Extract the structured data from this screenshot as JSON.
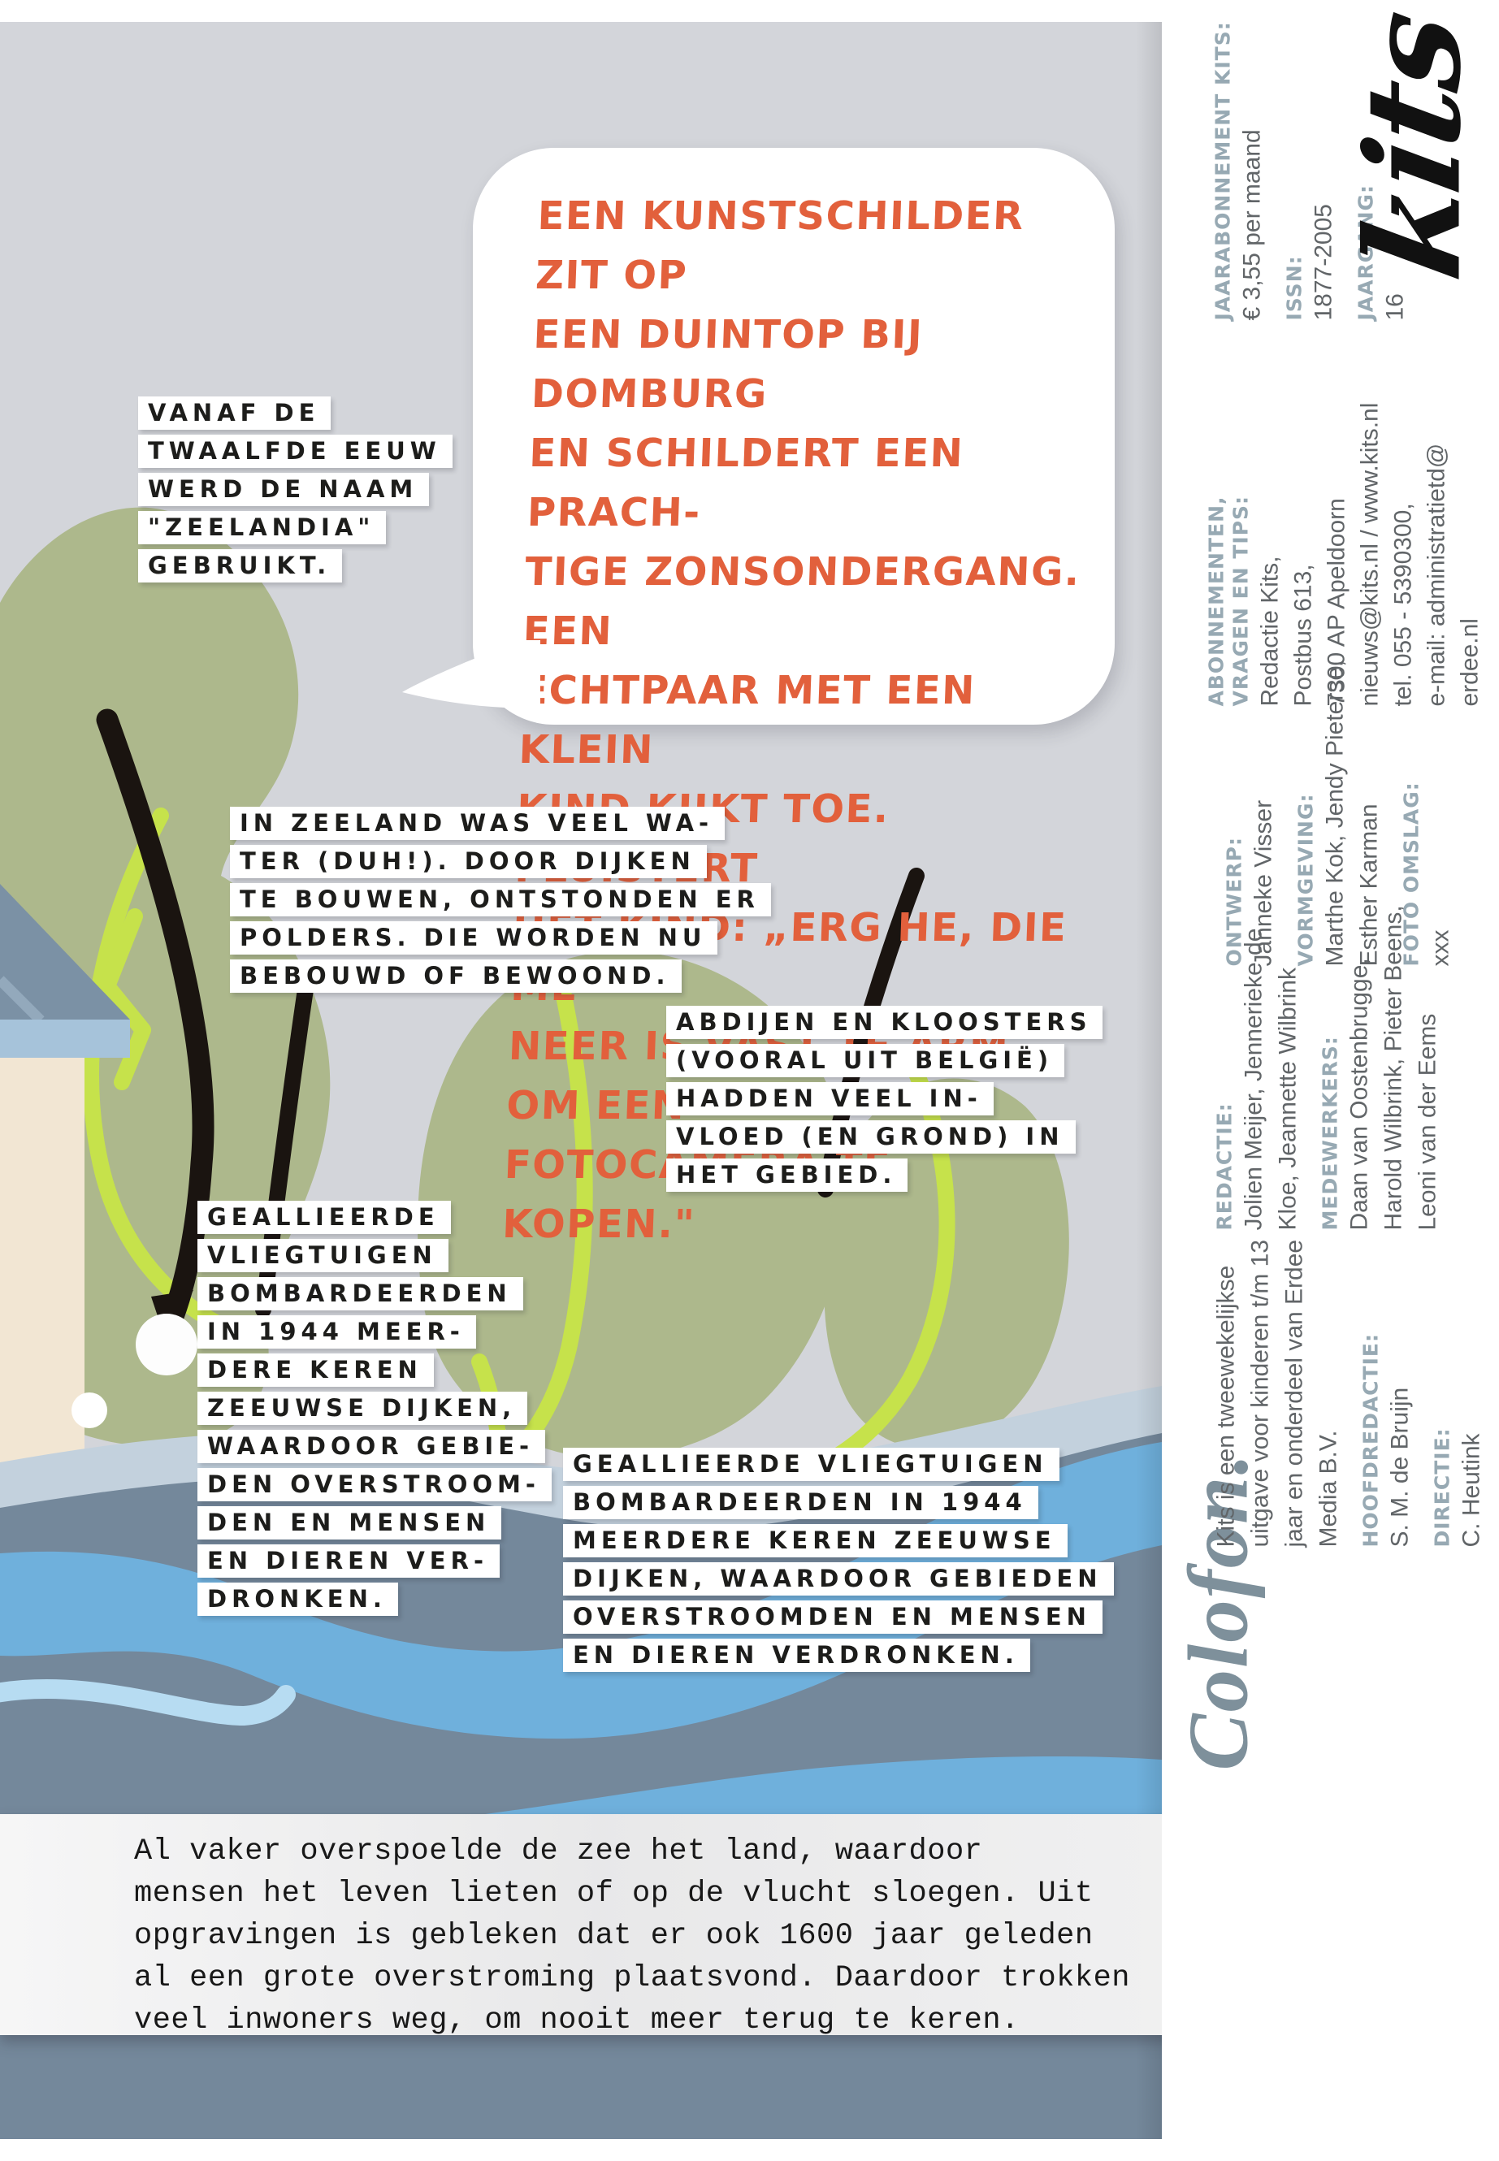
{
  "theme": {
    "panel": "#d3d5da",
    "canopy": "#adb88c",
    "lime": "#c6e24b",
    "branch": "#1a1410",
    "roof": "#7b91a5",
    "roof-line": "#93a9bc",
    "fascia": "#a6c3da",
    "wall": "#f2e6d3",
    "water-pale": "#c3d1dd",
    "water-slate": "#74889b",
    "water-blue": "#6fb0dc",
    "water-light": "#b7dcf2",
    "bubble-text": "#e2603c",
    "label-ink": "#1d1d1b",
    "paper": "#ededee",
    "colophon-heading": "#97a9b3",
    "colophon-text": "#616568",
    "colophon-title": "#7e909b",
    "logo-ink": "#111111"
  },
  "bubble": {
    "lines": [
      "EEN KUNSTSCHILDER ZIT OP",
      "EEN DUINTOP BIJ DOMBURG",
      "EN SCHILDERT EEN PRACH-",
      "TIGE ZONSONDERGANG. EEN",
      "ECHTPAAR MET EEN KLEIN",
      "KIND KIJKT TOE. FLUISTERT",
      "HET KIND: „ERG HE, DIE ME-",
      "NEER IS VAST TE ARM OM EEN",
      "FOTOCAMERA TE KOPEN.\""
    ]
  },
  "labels": {
    "zeelandia": {
      "lines": [
        "VANAF DE",
        "TWAALFDE EEUW",
        "WERD DE NAAM",
        "\"ZEELANDIA\"",
        "GEBRUIKT."
      ]
    },
    "polders": {
      "lines": [
        "IN ZEELAND WAS VEEL WA-",
        "TER (DUH!). DOOR DIJKEN",
        "TE BOUWEN, ONTSTONDEN ER",
        "POLDERS. DIE WORDEN NU",
        "BEBOUWD OF BEWOOND."
      ]
    },
    "abdijen": {
      "lines": [
        "ABDIJEN EN KLOOSTERS",
        "(VOORAL UIT BELGIË)",
        "HADDEN VEEL IN-",
        "VLOED (EN GROND) IN",
        "HET GEBIED."
      ]
    },
    "bombardementen_kolom": {
      "lines": [
        "GEALLIEERDE",
        "VLIEGTUIGEN",
        "BOMBARDEERDEN",
        "IN 1944 MEER-",
        "DERE KEREN",
        "ZEEUWSE DIJKEN,",
        "WAARDOOR GEBIE-",
        "DEN OVERSTROOM-",
        "DEN EN MENSEN",
        "EN DIEREN VER-",
        "DRONKEN."
      ]
    },
    "bombardementen_breed": {
      "lines": [
        "GEALLIEERDE VLIEGTUIGEN",
        "BOMBARDEERDEN IN 1944",
        "MEERDERE KEREN ZEEUWSE",
        "DIJKEN, WAARDOOR GEBIEDEN",
        "OVERSTROOMDEN EN MENSEN",
        "EN DIEREN VERDRONKEN."
      ]
    }
  },
  "footer_paragraph": {
    "lines": [
      "Al vaker overspoelde de zee het land, waardoor",
      "mensen het leven lieten of op de vlucht sloegen. Uit",
      "opgravingen is gebleken dat er ook 1600 jaar geleden",
      "al een grote overstroming plaatsvond. Daardoor trokken",
      "veel inwoners weg, om nooit meer terug te keren."
    ]
  },
  "colophon": {
    "title": "Colofon.",
    "logo_text": "kits",
    "about_lines": [
      "Kits is een tweewekelijkse",
      "uitgave voor kinderen t/m 13",
      "jaar en onderdeel van Erdee",
      "Media B.V."
    ],
    "sections": [
      {
        "heading": "HOOFDREDACTIE:",
        "lines": [
          "S. M. de Bruijn"
        ]
      },
      {
        "heading": "DIRECTIE:",
        "lines": [
          "C. Heutink"
        ]
      },
      {
        "heading": "REDACTIE:",
        "lines": [
          "Jolien Meijer, Jennerieke de",
          "Kloe, Jeannette Wilbrink"
        ]
      },
      {
        "heading": "MEDEWERKERS:",
        "lines": [
          "Daan van Oostenbrugge,",
          "Harold Wilbrink, Pieter Beens,",
          "Leoni van der Eems"
        ]
      },
      {
        "heading": "ONTWERP:",
        "lines": [
          "Janneke Visser"
        ]
      },
      {
        "heading": "VORMGEVING:",
        "lines": [
          "Marthe Kok, Jendy Pieterse,",
          "Esther Karman"
        ]
      },
      {
        "heading": "FOTO OMSLAG:",
        "lines": [
          "xxx"
        ]
      },
      {
        "heading": [
          "ABONNEMENTEN,",
          "VRAGEN EN TIPS:"
        ],
        "lines": [
          "Redactie Kits,",
          "Postbus 613,",
          "7300 AP Apeldoorn",
          "nieuws@kits.nl / www.kits.nl",
          "tel. 055 - 5390300,",
          "e-mail: administratietd@",
          "erdee.nl"
        ]
      },
      {
        "heading": "JAARABONNEMENT KITS:",
        "lines": [
          "€ 3,55 per maand"
        ]
      },
      {
        "heading": "ISSN:",
        "lines": [
          "1877-2005"
        ]
      },
      {
        "heading": "JAARGANG:",
        "lines": [
          "16"
        ]
      }
    ]
  }
}
